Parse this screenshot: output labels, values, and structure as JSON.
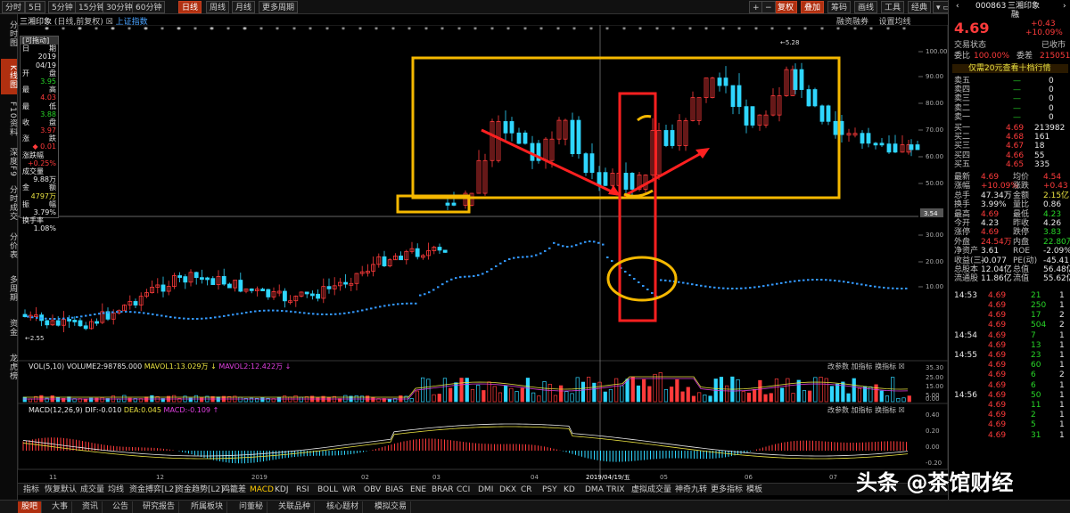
{
  "topbar": {
    "tabs": [
      "分时",
      "5日",
      "5分钟",
      "15分钟",
      "30分钟",
      "60分钟",
      "日线",
      "周线",
      "月线",
      "更多周期"
    ],
    "right_buttons": [
      "复权",
      "叠加",
      "筹码",
      "画线",
      "工具",
      "经典"
    ],
    "active_tab": "日线"
  },
  "leftnav": [
    "分时图",
    "K线图",
    "F10资料",
    "深度F9",
    "分时成交",
    "分价表",
    "多周期",
    "资金",
    "龙虎榜"
  ],
  "chart_title": {
    "name": "三湘印象",
    "mode": "(日线,前复权)",
    "index_link": "上证指数",
    "right_labels": [
      "融资融券",
      "设置均线"
    ]
  },
  "infopanel": {
    "header": "[可拖动]",
    "rows": [
      {
        "label": "日",
        "value": "期"
      },
      {
        "label": "",
        "value": "2019"
      },
      {
        "label": "",
        "value": "04/19"
      },
      {
        "label": "开",
        "value": "盘"
      },
      {
        "label": "",
        "value": "3.95"
      },
      {
        "label": "最",
        "value": "高"
      },
      {
        "label": "",
        "value": "4.03"
      },
      {
        "label": "最",
        "value": "低"
      },
      {
        "label": "",
        "value": "3.88"
      },
      {
        "label": "收",
        "value": "盘"
      },
      {
        "label": "",
        "value": "3.97"
      },
      {
        "label": "涨",
        "value": "跌"
      },
      {
        "label": "",
        "value": "◆ 0.01"
      },
      {
        "label": "涨跌幅",
        "value": ""
      },
      {
        "label": "",
        "value": "+0.25%"
      },
      {
        "label": "成交量",
        "value": ""
      },
      {
        "label": "",
        "value": "9.88万"
      },
      {
        "label": "金",
        "value": "额"
      },
      {
        "label": "",
        "value": "4797万"
      },
      {
        "label": "振",
        "value": "幅"
      },
      {
        "label": "",
        "value": "3.79%"
      },
      {
        "label": "换手率",
        "value": ""
      },
      {
        "label": "",
        "value": "1.08%"
      }
    ]
  },
  "kchart": {
    "yticks": [
      "100.00",
      "90.00",
      "80.00",
      "70.00",
      "60.00",
      "50.00",
      "30.00",
      "20.00",
      "10.00"
    ],
    "price_tag": "3.54",
    "high_label": "5.28",
    "low_label": "2.55"
  },
  "volume": {
    "label": "VOL(5,10)",
    "vol": "VOLUME2:98785.000",
    "ma1": "MAVOL1:13.029万",
    "ma2": "MAVOL2:12.422万",
    "yticks": [
      "35.30",
      "25.00",
      "15.00",
      "5.00",
      "0.00"
    ],
    "controls": [
      "改参数",
      "加指标",
      "换指标"
    ]
  },
  "macd": {
    "label": "MACD(12,26,9)",
    "dif": "DIF:-0.010",
    "dea": "DEA:0.045",
    "macd": "MACD:-0.109",
    "yticks": [
      "0.40",
      "0.20",
      "0.00",
      "-0.20"
    ],
    "controls": [
      "改参数",
      "加指标",
      "换指标"
    ]
  },
  "xaxis": [
    "11",
    "12",
    "2019",
    "02",
    "03",
    "04",
    "2019/04/19/五",
    "05",
    "06",
    "07"
  ],
  "rightpanel": {
    "code": "000863",
    "name": "三湘印象",
    "sub": "融",
    "price": "4.69",
    "change": "+0.43",
    "pct": "+10.09%",
    "status_label": "交易状态",
    "status_value": "已收市",
    "wb_label": "委比",
    "wb_value": "100.00%",
    "wc_label": "委差",
    "wc_value": "215051",
    "promo": "仅需20元查看十档行情",
    "sells": [
      [
        "卖五",
        "—",
        "0"
      ],
      [
        "卖四",
        "—",
        "0"
      ],
      [
        "卖三",
        "—",
        "0"
      ],
      [
        "卖二",
        "—",
        "0"
      ],
      [
        "卖一",
        "—",
        "0"
      ]
    ],
    "buys": [
      [
        "买一",
        "4.69",
        "213982"
      ],
      [
        "买二",
        "4.68",
        "161"
      ],
      [
        "买三",
        "4.67",
        "18"
      ],
      [
        "买四",
        "4.66",
        "55"
      ],
      [
        "买五",
        "4.65",
        "335"
      ]
    ],
    "stats": [
      [
        "最新",
        "4.69",
        "均价",
        "4.54"
      ],
      [
        "涨幅",
        "+10.09%",
        "涨跌",
        "+0.43"
      ],
      [
        "总手",
        "47.34万",
        "金额",
        "2.15亿"
      ],
      [
        "换手",
        "3.99%",
        "量比",
        "0.86"
      ],
      [
        "最高",
        "4.69",
        "最低",
        "4.23"
      ],
      [
        "今开",
        "4.23",
        "昨收",
        "4.26"
      ],
      [
        "涨停",
        "4.69",
        "跌停",
        "3.83"
      ],
      [
        "外盘",
        "24.54万",
        "内盘",
        "22.80万"
      ],
      [
        "净资产",
        "3.61",
        "ROE",
        "-2.09%"
      ],
      [
        "收益(三)",
        "-0.077",
        "PE(动)",
        "-45.41"
      ],
      [
        "总股本",
        "12.04亿",
        "总值",
        "56.48亿"
      ],
      [
        "流通股",
        "11.86亿",
        "流值",
        "55.62亿"
      ]
    ],
    "ticks": [
      [
        "14:53",
        "4.69",
        "21",
        "1"
      ],
      [
        "",
        "4.69",
        "250",
        "1"
      ],
      [
        "",
        "4.69",
        "17",
        "2"
      ],
      [
        "",
        "4.69",
        "504",
        "2"
      ],
      [
        "14:54",
        "4.69",
        "7",
        "1"
      ],
      [
        "",
        "4.69",
        "13",
        "1"
      ],
      [
        "14:55",
        "4.69",
        "23",
        "1"
      ],
      [
        "",
        "4.69",
        "60",
        "1"
      ],
      [
        "",
        "4.69",
        "6",
        "2"
      ],
      [
        "",
        "4.69",
        "6",
        "1"
      ],
      [
        "14:56",
        "4.69",
        "50",
        "1"
      ],
      [
        "",
        "4.69",
        "11",
        "1"
      ],
      [
        "",
        "4.69",
        "2",
        "1"
      ],
      [
        "",
        "4.69",
        "5",
        "1"
      ],
      [
        "",
        "4.69",
        "31",
        "1"
      ]
    ]
  },
  "bottomtabs": [
    "指标",
    "恢复默认",
    "成交量",
    "均线",
    "资金搏弈[L2]",
    "资金趋势[L2]",
    "鸡籠差",
    "MACD",
    "KDJ",
    "RSI",
    "BOLL",
    "WR",
    "OBV",
    "BIAS",
    "ENE",
    "BRAR",
    "CCI",
    "DMI",
    "DKX",
    "CR",
    "PSY",
    "KD",
    "DMA",
    "TRIX",
    "虚拟成交量",
    "神奇九转",
    "更多指标",
    "模板"
  ],
  "statusbar": [
    "股吧",
    "大事",
    "资讯",
    "公告",
    "研究报告",
    "所属板块",
    "问董秘",
    "关联品种",
    "核心题材",
    "模拟交易"
  ],
  "watermark": "头条 @茶馆财经",
  "colors": {
    "up": "#ff3b3b",
    "down": "#2fd6ff",
    "orange_box": "#f5b800",
    "red_box": "#ff2020",
    "ma_blue": "#3399ff"
  }
}
